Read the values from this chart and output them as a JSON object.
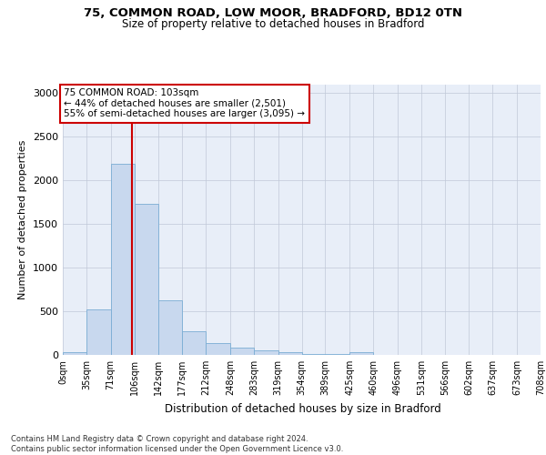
{
  "title1": "75, COMMON ROAD, LOW MOOR, BRADFORD, BD12 0TN",
  "title2": "Size of property relative to detached houses in Bradford",
  "xlabel": "Distribution of detached houses by size in Bradford",
  "ylabel": "Number of detached properties",
  "bar_edges": [
    0,
    35,
    71,
    106,
    142,
    177,
    212,
    248,
    283,
    319,
    354,
    389,
    425,
    460,
    496,
    531,
    566,
    602,
    637,
    673,
    708
  ],
  "bar_heights": [
    30,
    525,
    2190,
    1730,
    630,
    270,
    140,
    80,
    50,
    30,
    15,
    8,
    30,
    5,
    3,
    2,
    1,
    1,
    1,
    1
  ],
  "bar_color": "#c8d8ee",
  "bar_edgecolor": "#7aadd4",
  "property_size": 103,
  "red_line_color": "#cc0000",
  "annotation_text": "75 COMMON ROAD: 103sqm\n← 44% of detached houses are smaller (2,501)\n55% of semi-detached houses are larger (3,095) →",
  "annotation_box_facecolor": "#ffffff",
  "annotation_box_edgecolor": "#cc0000",
  "ylim": [
    0,
    3100
  ],
  "yticks": [
    0,
    500,
    1000,
    1500,
    2000,
    2500,
    3000
  ],
  "background_color": "#e8eef8",
  "footer_text": "Contains HM Land Registry data © Crown copyright and database right 2024.\nContains public sector information licensed under the Open Government Licence v3.0.",
  "tick_labels": [
    "0sqm",
    "35sqm",
    "71sqm",
    "106sqm",
    "142sqm",
    "177sqm",
    "212sqm",
    "248sqm",
    "283sqm",
    "319sqm",
    "354sqm",
    "389sqm",
    "425sqm",
    "460sqm",
    "496sqm",
    "531sqm",
    "566sqm",
    "602sqm",
    "637sqm",
    "673sqm",
    "708sqm"
  ],
  "title1_fontsize": 9.5,
  "title2_fontsize": 8.5
}
